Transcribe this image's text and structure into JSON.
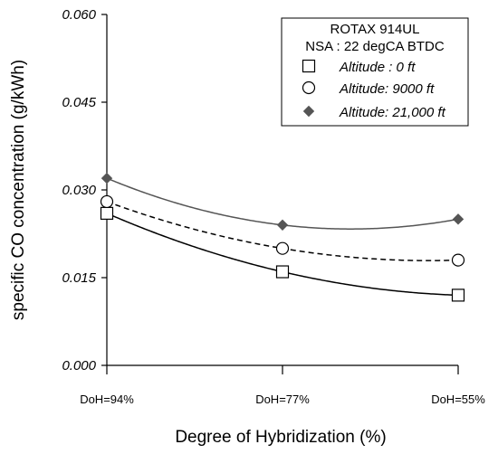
{
  "chart_data": {
    "type": "line",
    "categories": [
      "DoH=94%",
      "DoH=77%",
      "DoH=55%"
    ],
    "xlabel": "Degree of Hybridization (%)",
    "ylabel": "specific CO concentration (g/kWh)",
    "ylim": [
      0.0,
      0.06
    ],
    "yticks": [
      "0.000",
      "0.015",
      "0.030",
      "0.045",
      "0.060"
    ],
    "grid": false,
    "legend": {
      "placement": "top-right",
      "title_lines": [
        "ROTAX 914UL",
        "NSA : 22 degCA BTDC"
      ]
    },
    "series": [
      {
        "name": "Altitude : 0 ft",
        "marker": "open-square",
        "line": "solid",
        "color": "#000000",
        "values": [
          0.026,
          0.016,
          0.012
        ]
      },
      {
        "name": "Altitude: 9000 ft",
        "marker": "open-circle",
        "line": "dashed",
        "color": "#000000",
        "values": [
          0.028,
          0.02,
          0.018
        ]
      },
      {
        "name": "Altitude: 21,000 ft",
        "marker": "filled-diamond",
        "line": "solid",
        "color": "#555555",
        "values": [
          0.032,
          0.024,
          0.025
        ]
      }
    ]
  }
}
